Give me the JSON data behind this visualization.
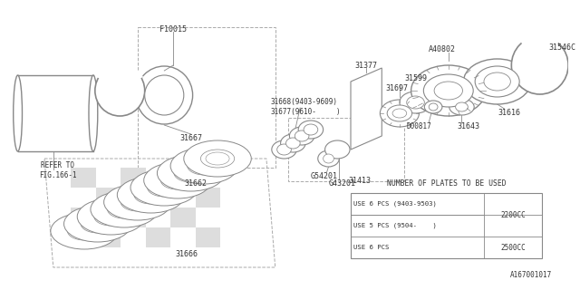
{
  "bg_color": "#ffffff",
  "line_color": "#888888",
  "diagram_id": "A167001017",
  "text_color": "#333333",
  "table_title": "NUMBER OF PLATES TO BE USED",
  "table_rows": [
    [
      "USE 6 PCS (9403-9503)",
      "2200CC"
    ],
    [
      "USE 5 PCS (9504-    )",
      ""
    ],
    [
      "USE 6 PCS",
      "2500CC"
    ]
  ]
}
